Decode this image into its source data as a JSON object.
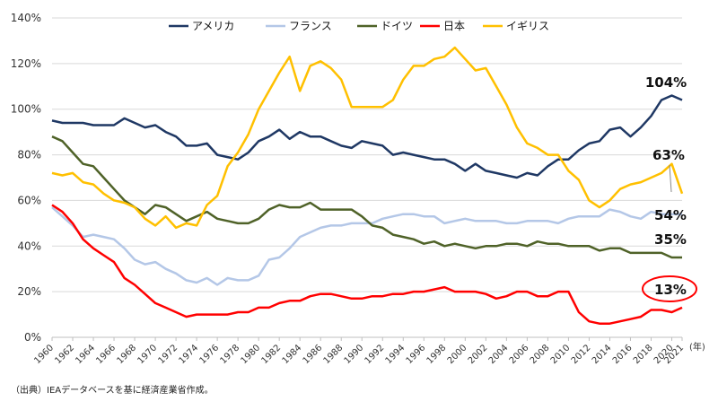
{
  "chart_data": {
    "type": "line",
    "x": [
      1960,
      1961,
      1962,
      1963,
      1964,
      1965,
      1966,
      1967,
      1968,
      1969,
      1970,
      1971,
      1972,
      1973,
      1974,
      1975,
      1976,
      1977,
      1978,
      1979,
      1980,
      1981,
      1982,
      1983,
      1984,
      1985,
      1986,
      1987,
      1988,
      1989,
      1990,
      1991,
      1992,
      1993,
      1994,
      1995,
      1996,
      1997,
      1998,
      1999,
      2000,
      2001,
      2002,
      2003,
      2004,
      2005,
      2006,
      2007,
      2008,
      2009,
      2010,
      2011,
      2012,
      2013,
      2014,
      2015,
      2016,
      2017,
      2018,
      2019,
      2020,
      2021
    ],
    "x_tick_labels": [
      "1960",
      "1962",
      "1964",
      "1966",
      "1968",
      "1970",
      "1972",
      "1974",
      "1976",
      "1978",
      "1980",
      "1982",
      "1984",
      "1986",
      "1988",
      "1990",
      "1992",
      "1994",
      "1996",
      "1998",
      "2000",
      "2002",
      "2004",
      "2006",
      "2008",
      "2010",
      "2012",
      "2014",
      "2016",
      "2018",
      "2020",
      "2021"
    ],
    "x_unit": "(年)",
    "ylim": [
      0,
      140
    ],
    "y_tick_labels": [
      "0%",
      "20%",
      "40%",
      "60%",
      "80%",
      "100%",
      "120%",
      "140%"
    ],
    "grid": "horizontal",
    "legend_position": "top",
    "series": [
      {
        "name": "アメリカ",
        "color": "#1f3864",
        "values": [
          95,
          94,
          94,
          94,
          93,
          93,
          93,
          96,
          94,
          92,
          93,
          90,
          88,
          84,
          84,
          85,
          80,
          79,
          78,
          81,
          86,
          88,
          91,
          87,
          90,
          88,
          88,
          86,
          84,
          83,
          86,
          85,
          84,
          80,
          81,
          80,
          79,
          78,
          78,
          76,
          73,
          76,
          73,
          72,
          71,
          70,
          72,
          71,
          75,
          78,
          78,
          82,
          85,
          86,
          91,
          92,
          88,
          92,
          97,
          104,
          106,
          104
        ]
      },
      {
        "name": "フランス",
        "color": "#b4c7e7",
        "values": [
          57,
          53,
          49,
          44,
          45,
          44,
          43,
          39,
          34,
          32,
          33,
          30,
          28,
          25,
          24,
          26,
          23,
          26,
          25,
          25,
          27,
          34,
          35,
          39,
          44,
          46,
          48,
          49,
          49,
          50,
          50,
          50,
          52,
          53,
          54,
          54,
          53,
          53,
          50,
          51,
          52,
          51,
          51,
          51,
          50,
          50,
          51,
          51,
          51,
          50,
          52,
          53,
          53,
          53,
          56,
          55,
          53,
          52,
          55,
          54,
          54,
          54
        ]
      },
      {
        "name": "ドイツ",
        "color": "#4f6228",
        "values": [
          88,
          86,
          81,
          76,
          75,
          70,
          65,
          60,
          57,
          54,
          58,
          57,
          54,
          51,
          53,
          55,
          52,
          51,
          50,
          50,
          52,
          56,
          58,
          57,
          57,
          59,
          56,
          56,
          56,
          56,
          53,
          49,
          48,
          45,
          44,
          43,
          41,
          42,
          40,
          41,
          40,
          39,
          40,
          40,
          41,
          41,
          40,
          42,
          41,
          41,
          40,
          40,
          40,
          38,
          39,
          39,
          37,
          37,
          37,
          37,
          35,
          35
        ]
      },
      {
        "name": "日本",
        "color": "#ff0000",
        "values": [
          58,
          55,
          50,
          43,
          39,
          36,
          33,
          26,
          23,
          19,
          15,
          13,
          11,
          9,
          10,
          10,
          10,
          10,
          11,
          11,
          13,
          13,
          15,
          16,
          16,
          18,
          19,
          19,
          18,
          17,
          17,
          18,
          18,
          19,
          19,
          20,
          20,
          21,
          22,
          20,
          20,
          20,
          19,
          17,
          18,
          20,
          20,
          18,
          18,
          20,
          20,
          11,
          7,
          6,
          6,
          7,
          8,
          9,
          12,
          12,
          11,
          13
        ]
      },
      {
        "name": "イギリス",
        "color": "#ffc000",
        "values": [
          72,
          71,
          72,
          68,
          67,
          63,
          60,
          59,
          57,
          52,
          49,
          53,
          48,
          50,
          49,
          58,
          62,
          75,
          81,
          89,
          100,
          108,
          116,
          123,
          108,
          119,
          121,
          118,
          113,
          101,
          101,
          101,
          101,
          104,
          113,
          119,
          119,
          122,
          123,
          127,
          122,
          117,
          118,
          110,
          102,
          92,
          85,
          83,
          80,
          80,
          73,
          69,
          60,
          57,
          60,
          65,
          67,
          68,
          70,
          72,
          76,
          63
        ]
      }
    ],
    "end_labels": [
      {
        "series": "アメリカ",
        "text": "104%"
      },
      {
        "series": "イギリス",
        "text": "63%"
      },
      {
        "series": "フランス",
        "text": "54%"
      },
      {
        "series": "ドイツ",
        "text": "35%"
      },
      {
        "series": "日本",
        "text": "13%"
      }
    ]
  },
  "source_note": "（出典）IEAデータベースを基に経済産業省作成。"
}
